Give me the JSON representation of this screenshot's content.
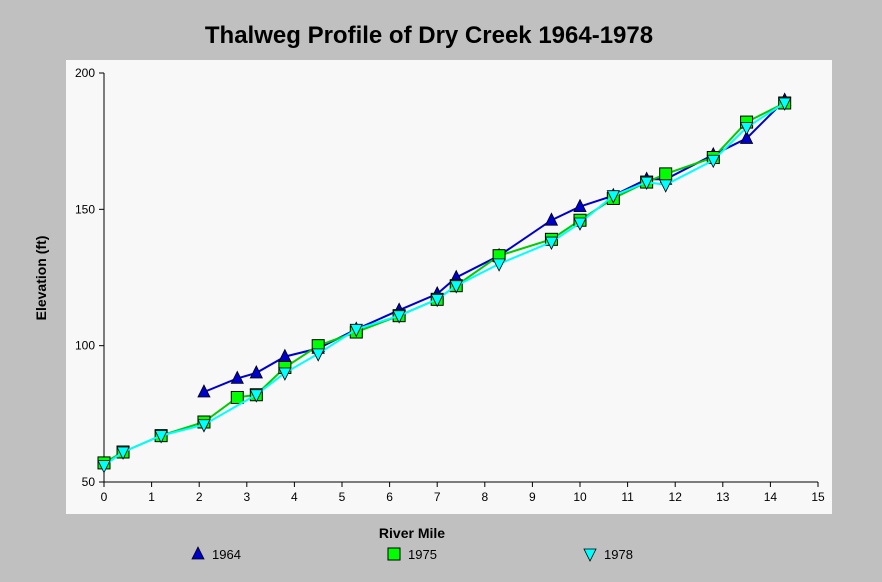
{
  "chart_data": {
    "type": "line",
    "title": "Thalweg Profile of Dry Creek 1964-1978",
    "xlabel": "River Mile",
    "ylabel": "Elevation (ft)",
    "xlim": [
      0,
      15
    ],
    "ylim": [
      50,
      200
    ],
    "xticks": [
      "0",
      "1",
      "2",
      "3",
      "4",
      "5",
      "6",
      "7",
      "8",
      "9",
      "10",
      "11",
      "12",
      "13",
      "14",
      "15"
    ],
    "yticks": [
      "50",
      "100",
      "150",
      "200"
    ],
    "grid": false,
    "legend_position": "bottom",
    "series": [
      {
        "name": "1964",
        "color": "#0000cc",
        "line_color": "#0000cc",
        "marker": "triangle-up",
        "points": [
          [
            2.1,
            83
          ],
          [
            2.8,
            88
          ],
          [
            3.2,
            90
          ],
          [
            3.8,
            96
          ],
          [
            4.5,
            99
          ],
          [
            5.3,
            106
          ],
          [
            6.2,
            113
          ],
          [
            7.0,
            119
          ],
          [
            7.4,
            125
          ],
          [
            8.3,
            133
          ],
          [
            9.4,
            146
          ],
          [
            10.0,
            151
          ],
          [
            10.7,
            155
          ],
          [
            11.4,
            161
          ],
          [
            11.8,
            161
          ],
          [
            12.8,
            170
          ],
          [
            13.5,
            176
          ],
          [
            14.3,
            190
          ]
        ]
      },
      {
        "name": "1975",
        "color": "#00ff00",
        "line_color": "#00cc00",
        "marker": "square",
        "points": [
          [
            0.0,
            57
          ],
          [
            0.4,
            61
          ],
          [
            1.2,
            67
          ],
          [
            2.1,
            72
          ],
          [
            2.8,
            81
          ],
          [
            3.2,
            82
          ],
          [
            3.8,
            92
          ],
          [
            4.5,
            100
          ],
          [
            5.3,
            105
          ],
          [
            6.2,
            111
          ],
          [
            7.0,
            117
          ],
          [
            7.4,
            122
          ],
          [
            8.3,
            133
          ],
          [
            9.4,
            139
          ],
          [
            10.0,
            146
          ],
          [
            10.7,
            154
          ],
          [
            11.4,
            160
          ],
          [
            11.8,
            163
          ],
          [
            12.8,
            169
          ],
          [
            13.5,
            182
          ],
          [
            14.3,
            189
          ]
        ]
      },
      {
        "name": "1978",
        "color": "#00ffff",
        "line_color": "#00ffff",
        "marker": "triangle-down",
        "points": [
          [
            0.0,
            56
          ],
          [
            0.4,
            61
          ],
          [
            1.2,
            67
          ],
          [
            2.1,
            71
          ],
          [
            3.2,
            82
          ],
          [
            3.8,
            90
          ],
          [
            4.5,
            97
          ],
          [
            5.3,
            106
          ],
          [
            6.2,
            111
          ],
          [
            7.0,
            117
          ],
          [
            7.4,
            122
          ],
          [
            8.3,
            130
          ],
          [
            9.4,
            138
          ],
          [
            10.0,
            145
          ],
          [
            10.7,
            155
          ],
          [
            11.4,
            160
          ],
          [
            11.8,
            159
          ],
          [
            12.8,
            168
          ],
          [
            13.5,
            180
          ],
          [
            14.3,
            189
          ]
        ]
      }
    ]
  }
}
